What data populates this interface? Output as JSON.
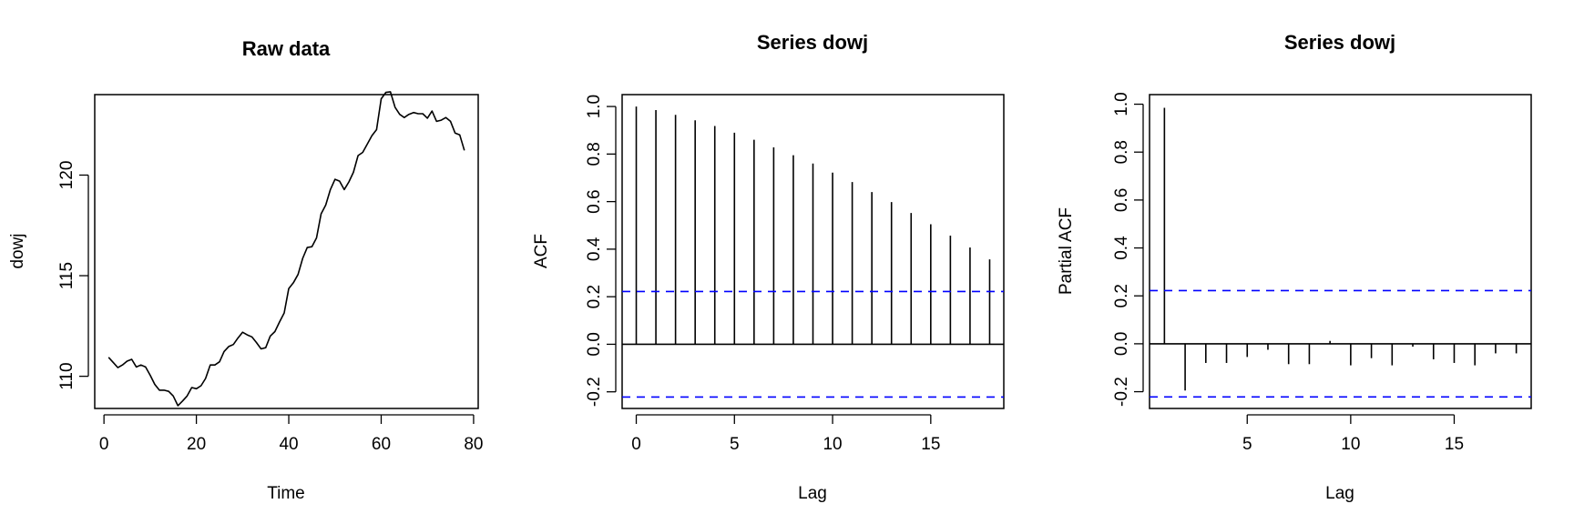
{
  "chart_data": [
    {
      "type": "line",
      "title": "Raw data",
      "xlabel": "Time",
      "ylabel": "dowj",
      "xlim": [
        -2,
        81
      ],
      "ylim": [
        108.4,
        124.0
      ],
      "xticks": [
        0,
        20,
        40,
        60,
        80
      ],
      "yticks": [
        110,
        115,
        120
      ],
      "x": [
        1,
        2,
        3,
        4,
        5,
        6,
        7,
        8,
        9,
        10,
        11,
        12,
        13,
        14,
        15,
        16,
        17,
        18,
        19,
        20,
        21,
        22,
        23,
        24,
        25,
        26,
        27,
        28,
        29,
        30,
        31,
        32,
        33,
        34,
        35,
        36,
        37,
        38,
        39,
        40,
        41,
        42,
        43,
        44,
        45,
        46,
        47,
        48,
        49,
        50,
        51,
        52,
        53,
        54,
        55,
        56,
        57,
        58,
        59,
        60,
        61,
        62,
        63,
        64,
        65,
        66,
        67,
        68,
        69,
        70,
        71,
        72,
        73,
        74,
        75,
        76,
        77,
        78
      ],
      "values": [
        110.94,
        110.69,
        110.43,
        110.56,
        110.75,
        110.84,
        110.46,
        110.56,
        110.46,
        110.05,
        109.6,
        109.31,
        109.31,
        109.25,
        109.02,
        108.54,
        108.77,
        109.02,
        109.44,
        109.38,
        109.53,
        109.89,
        110.56,
        110.56,
        110.72,
        111.23,
        111.48,
        111.58,
        111.9,
        112.19,
        112.06,
        111.96,
        111.68,
        111.36,
        111.42,
        112.0,
        112.22,
        112.7,
        113.15,
        114.36,
        114.65,
        115.06,
        115.86,
        116.4,
        116.44,
        116.88,
        118.07,
        118.51,
        119.28,
        119.79,
        119.7,
        119.28,
        119.66,
        120.14,
        120.97,
        121.13,
        121.55,
        121.96,
        122.26,
        123.79,
        124.11,
        124.14,
        123.37,
        123.02,
        122.86,
        123.02,
        123.11,
        123.05,
        123.05,
        122.83,
        123.18,
        122.67,
        122.73,
        122.86,
        122.67,
        122.09,
        122.0,
        121.23
      ],
      "grid": false
    },
    {
      "type": "bar",
      "title": "Series  dowj",
      "xlabel": "Lag",
      "ylabel": "ACF",
      "xlim": [
        -0.72,
        18.72
      ],
      "ylim": [
        -0.27,
        1.05
      ],
      "xticks": [
        0,
        5,
        10,
        15
      ],
      "yticks": [
        "-0.2",
        "0.0",
        "0.2",
        "0.4",
        "0.6",
        "0.8",
        "1.0"
      ],
      "x": [
        0,
        1,
        2,
        3,
        4,
        5,
        6,
        7,
        8,
        9,
        10,
        11,
        12,
        13,
        14,
        15,
        16,
        17,
        18
      ],
      "values": [
        1.0,
        0.985,
        0.965,
        0.942,
        0.918,
        0.89,
        0.86,
        0.828,
        0.795,
        0.76,
        0.722,
        0.682,
        0.64,
        0.598,
        0.552,
        0.505,
        0.457,
        0.407,
        0.357
      ],
      "confidence_bands": [
        0.222,
        -0.222
      ],
      "grid": false
    },
    {
      "type": "bar",
      "title": "Series  dowj",
      "xlabel": "Lag",
      "ylabel": "Partial ACF",
      "xlim": [
        0.28,
        18.72
      ],
      "ylim": [
        -0.27,
        1.04
      ],
      "xticks": [
        5,
        10,
        15
      ],
      "yticks": [
        "-0.2",
        "0.0",
        "0.2",
        "0.4",
        "0.6",
        "0.8",
        "1.0"
      ],
      "x": [
        1,
        2,
        3,
        4,
        5,
        6,
        7,
        8,
        9,
        10,
        11,
        12,
        13,
        14,
        15,
        16,
        17,
        18
      ],
      "values": [
        0.985,
        -0.195,
        -0.08,
        -0.08,
        -0.055,
        -0.025,
        -0.085,
        -0.085,
        0.012,
        -0.09,
        -0.06,
        -0.09,
        -0.012,
        -0.065,
        -0.08,
        -0.09,
        -0.04,
        -0.04
      ],
      "confidence_bands": [
        0.222,
        -0.222
      ],
      "grid": false
    }
  ],
  "colors": {
    "series": "#000000",
    "confidence": "#0000ff",
    "axis": "#000000"
  }
}
